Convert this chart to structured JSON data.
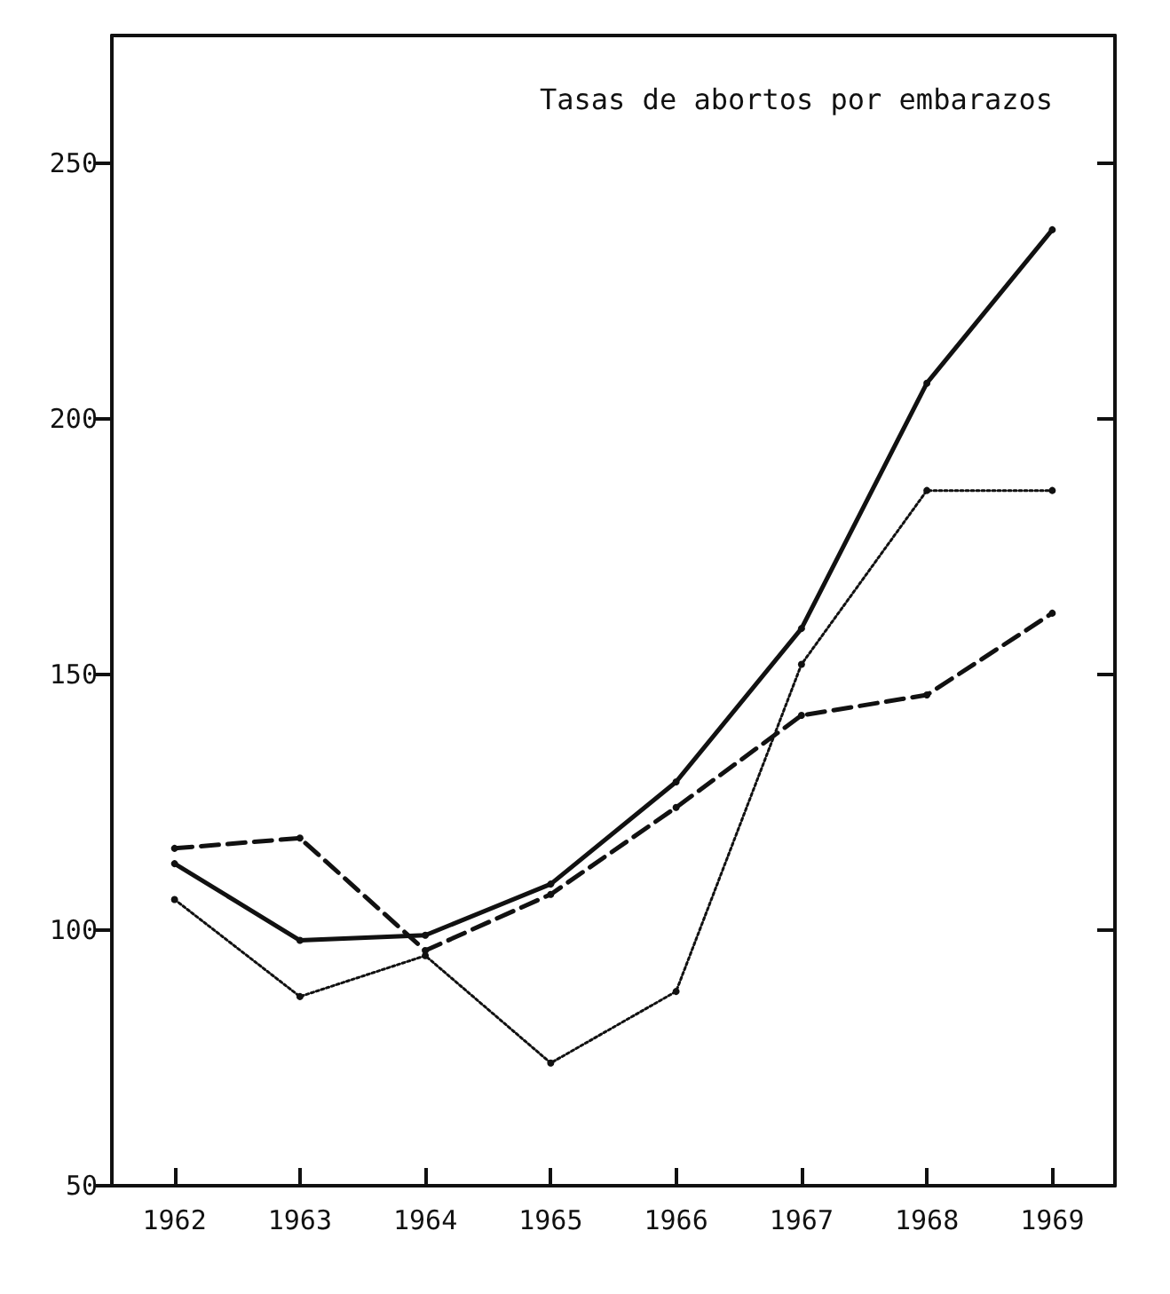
{
  "chart_data": {
    "type": "line",
    "title": "Tasas de abortos por embarazos",
    "categories": [
      "1962",
      "1963",
      "1964",
      "1965",
      "1966",
      "1967",
      "1968",
      "1969"
    ],
    "series": [
      {
        "color": "#111111",
        "line_style": "solid",
        "values": [
          113,
          98,
          99,
          109,
          129,
          159,
          207,
          237
        ]
      },
      {
        "color": "#111111",
        "line_style": "dashed",
        "values": [
          116,
          118,
          96,
          107,
          124,
          142,
          146,
          162
        ]
      },
      {
        "color": "#111111",
        "line_style": "dotted",
        "values": [
          106,
          87,
          95,
          74,
          88,
          152,
          186,
          186
        ]
      }
    ],
    "ylim": [
      50,
      275
    ],
    "yticks": [
      50,
      100,
      150,
      200,
      250
    ],
    "grid": false,
    "marker": "circle"
  }
}
